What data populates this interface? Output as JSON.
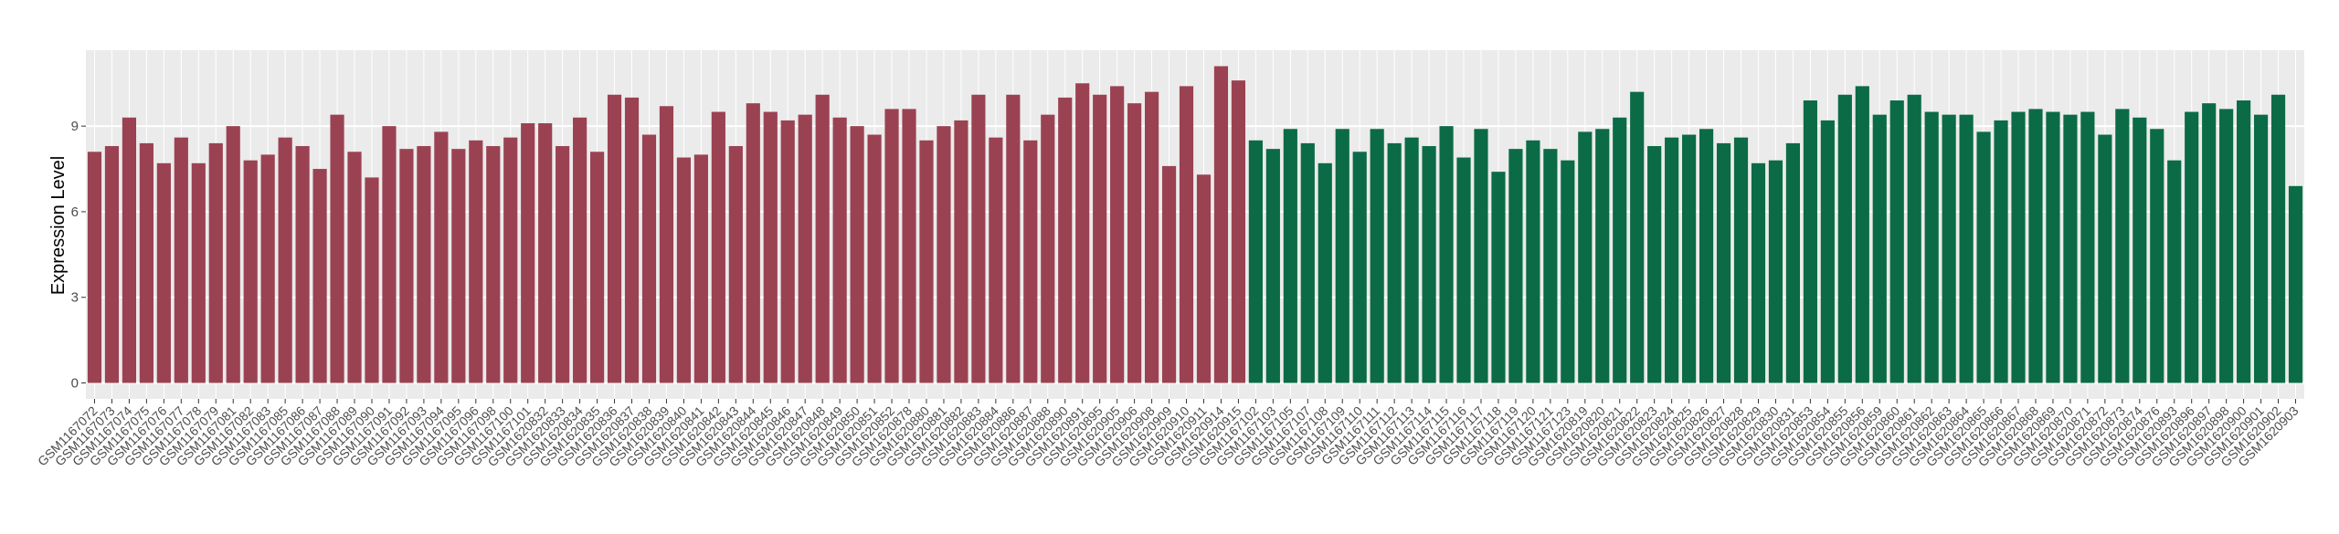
{
  "chart_data": {
    "type": "bar",
    "y_label": "Expression Level",
    "categories": [
      "GSM1167072",
      "GSM1167073",
      "GSM1167074",
      "GSM1167075",
      "GSM1167076",
      "GSM1167077",
      "GSM1167078",
      "GSM1167079",
      "GSM1167081",
      "GSM1167082",
      "GSM1167083",
      "GSM1167085",
      "GSM1167086",
      "GSM1167087",
      "GSM1167088",
      "GSM1167089",
      "GSM1167090",
      "GSM1167091",
      "GSM1167092",
      "GSM1167093",
      "GSM1167094",
      "GSM1167095",
      "GSM1167096",
      "GSM1167098",
      "GSM1167100",
      "GSM1167101",
      "GSM1620832",
      "GSM1620833",
      "GSM1620834",
      "GSM1620835",
      "GSM1620836",
      "GSM1620837",
      "GSM1620838",
      "GSM1620839",
      "GSM1620840",
      "GSM1620841",
      "GSM1620842",
      "GSM1620843",
      "GSM1620844",
      "GSM1620845",
      "GSM1620846",
      "GSM1620847",
      "GSM1620848",
      "GSM1620849",
      "GSM1620850",
      "GSM1620851",
      "GSM1620852",
      "GSM1620878",
      "GSM1620880",
      "GSM1620881",
      "GSM1620882",
      "GSM1620883",
      "GSM1620884",
      "GSM1620886",
      "GSM1620887",
      "GSM1620888",
      "GSM1620890",
      "GSM1620891",
      "GSM1620895",
      "GSM1620905",
      "GSM1620906",
      "GSM1620908",
      "GSM1620909",
      "GSM1620910",
      "GSM1620911",
      "GSM1620914",
      "GSM1620915",
      "GSM1167102",
      "GSM1167103",
      "GSM1167105",
      "GSM1167107",
      "GSM1167108",
      "GSM1167109",
      "GSM1167110",
      "GSM1167111",
      "GSM1167112",
      "GSM1167113",
      "GSM1167114",
      "GSM1167115",
      "GSM1167116",
      "GSM1167117",
      "GSM1167118",
      "GSM1167119",
      "GSM1167120",
      "GSM1167121",
      "GSM1167123",
      "GSM1620819",
      "GSM1620820",
      "GSM1620821",
      "GSM1620822",
      "GSM1620823",
      "GSM1620824",
      "GSM1620825",
      "GSM1620826",
      "GSM1620827",
      "GSM1620828",
      "GSM1620829",
      "GSM1620830",
      "GSM1620831",
      "GSM1620853",
      "GSM1620854",
      "GSM1620855",
      "GSM1620856",
      "GSM1620859",
      "GSM1620860",
      "GSM1620861",
      "GSM1620862",
      "GSM1620863",
      "GSM1620864",
      "GSM1620865",
      "GSM1620866",
      "GSM1620867",
      "GSM1620868",
      "GSM1620869",
      "GSM1620870",
      "GSM1620871",
      "GSM1620872",
      "GSM1620873",
      "GSM1620874",
      "GSM1620876",
      "GSM1620893",
      "GSM1620896",
      "GSM1620897",
      "GSM1620898",
      "GSM1620900",
      "GSM1620901",
      "GSM1620902",
      "GSM1620903"
    ],
    "series": [
      {
        "color": "#9b4252",
        "values": [
          8.1,
          8.3,
          9.3,
          8.4,
          7.7,
          8.6,
          7.7,
          8.4,
          9.0,
          7.8,
          8.0,
          8.6,
          8.3,
          7.5,
          9.4,
          8.1,
          7.2,
          9.0,
          8.2,
          8.3,
          8.8,
          8.2,
          8.5,
          8.3,
          8.6,
          9.1,
          9.1,
          8.3,
          9.3,
          8.1,
          10.1,
          10.0,
          8.7,
          9.7,
          7.9,
          8.0,
          9.5,
          8.3,
          9.8,
          9.5,
          9.2,
          9.4,
          10.1,
          9.3,
          9.0,
          8.7,
          9.6,
          9.6,
          8.5,
          9.0,
          9.2,
          10.1,
          8.6,
          10.1,
          8.5,
          9.4,
          10.0,
          10.5,
          10.1,
          10.4,
          9.8,
          10.2,
          7.6,
          10.4,
          7.3,
          11.1,
          10.6,
          null,
          null,
          null,
          null,
          null,
          null,
          null,
          null,
          null,
          null,
          null,
          null,
          null,
          null,
          null,
          null,
          null,
          null,
          null,
          null,
          null,
          null,
          null,
          null,
          null,
          null,
          null,
          null,
          null,
          null,
          null,
          null,
          null,
          null,
          null,
          null,
          null,
          null,
          null,
          null,
          null,
          null,
          null,
          null,
          null,
          null,
          null,
          null,
          null,
          null,
          null,
          null,
          null,
          null,
          null,
          null,
          null,
          null,
          null,
          null,
          null
        ]
      },
      {
        "color": "#0b6b47",
        "values": [
          null,
          null,
          null,
          null,
          null,
          null,
          null,
          null,
          null,
          null,
          null,
          null,
          null,
          null,
          null,
          null,
          null,
          null,
          null,
          null,
          null,
          null,
          null,
          null,
          null,
          null,
          null,
          null,
          null,
          null,
          null,
          null,
          null,
          null,
          null,
          null,
          null,
          null,
          null,
          null,
          null,
          null,
          null,
          null,
          null,
          null,
          null,
          null,
          null,
          null,
          null,
          null,
          null,
          null,
          null,
          null,
          null,
          null,
          null,
          null,
          null,
          null,
          null,
          null,
          null,
          null,
          null,
          8.5,
          8.2,
          8.9,
          8.4,
          7.7,
          8.9,
          8.1,
          8.9,
          8.4,
          8.6,
          8.3,
          9.0,
          7.9,
          8.9,
          7.4,
          8.2,
          8.5,
          8.2,
          7.8,
          8.8,
          8.9,
          9.3,
          10.2,
          8.3,
          8.6,
          8.7,
          8.9,
          8.4,
          8.6,
          7.7,
          7.8,
          8.4,
          9.9,
          9.2,
          10.1,
          10.4,
          9.4,
          9.9,
          10.1,
          9.5,
          9.4,
          9.4,
          8.8,
          9.2,
          9.5,
          9.6,
          9.5,
          9.4,
          9.5,
          8.7,
          9.6,
          9.3,
          8.9,
          7.8,
          9.5,
          9.8,
          9.6,
          9.9,
          9.4,
          10.1,
          6.9
        ]
      }
    ],
    "ylim": [
      -0.56,
      11.66
    ],
    "yticks": [
      0,
      3,
      6,
      9
    ],
    "grid": true
  }
}
